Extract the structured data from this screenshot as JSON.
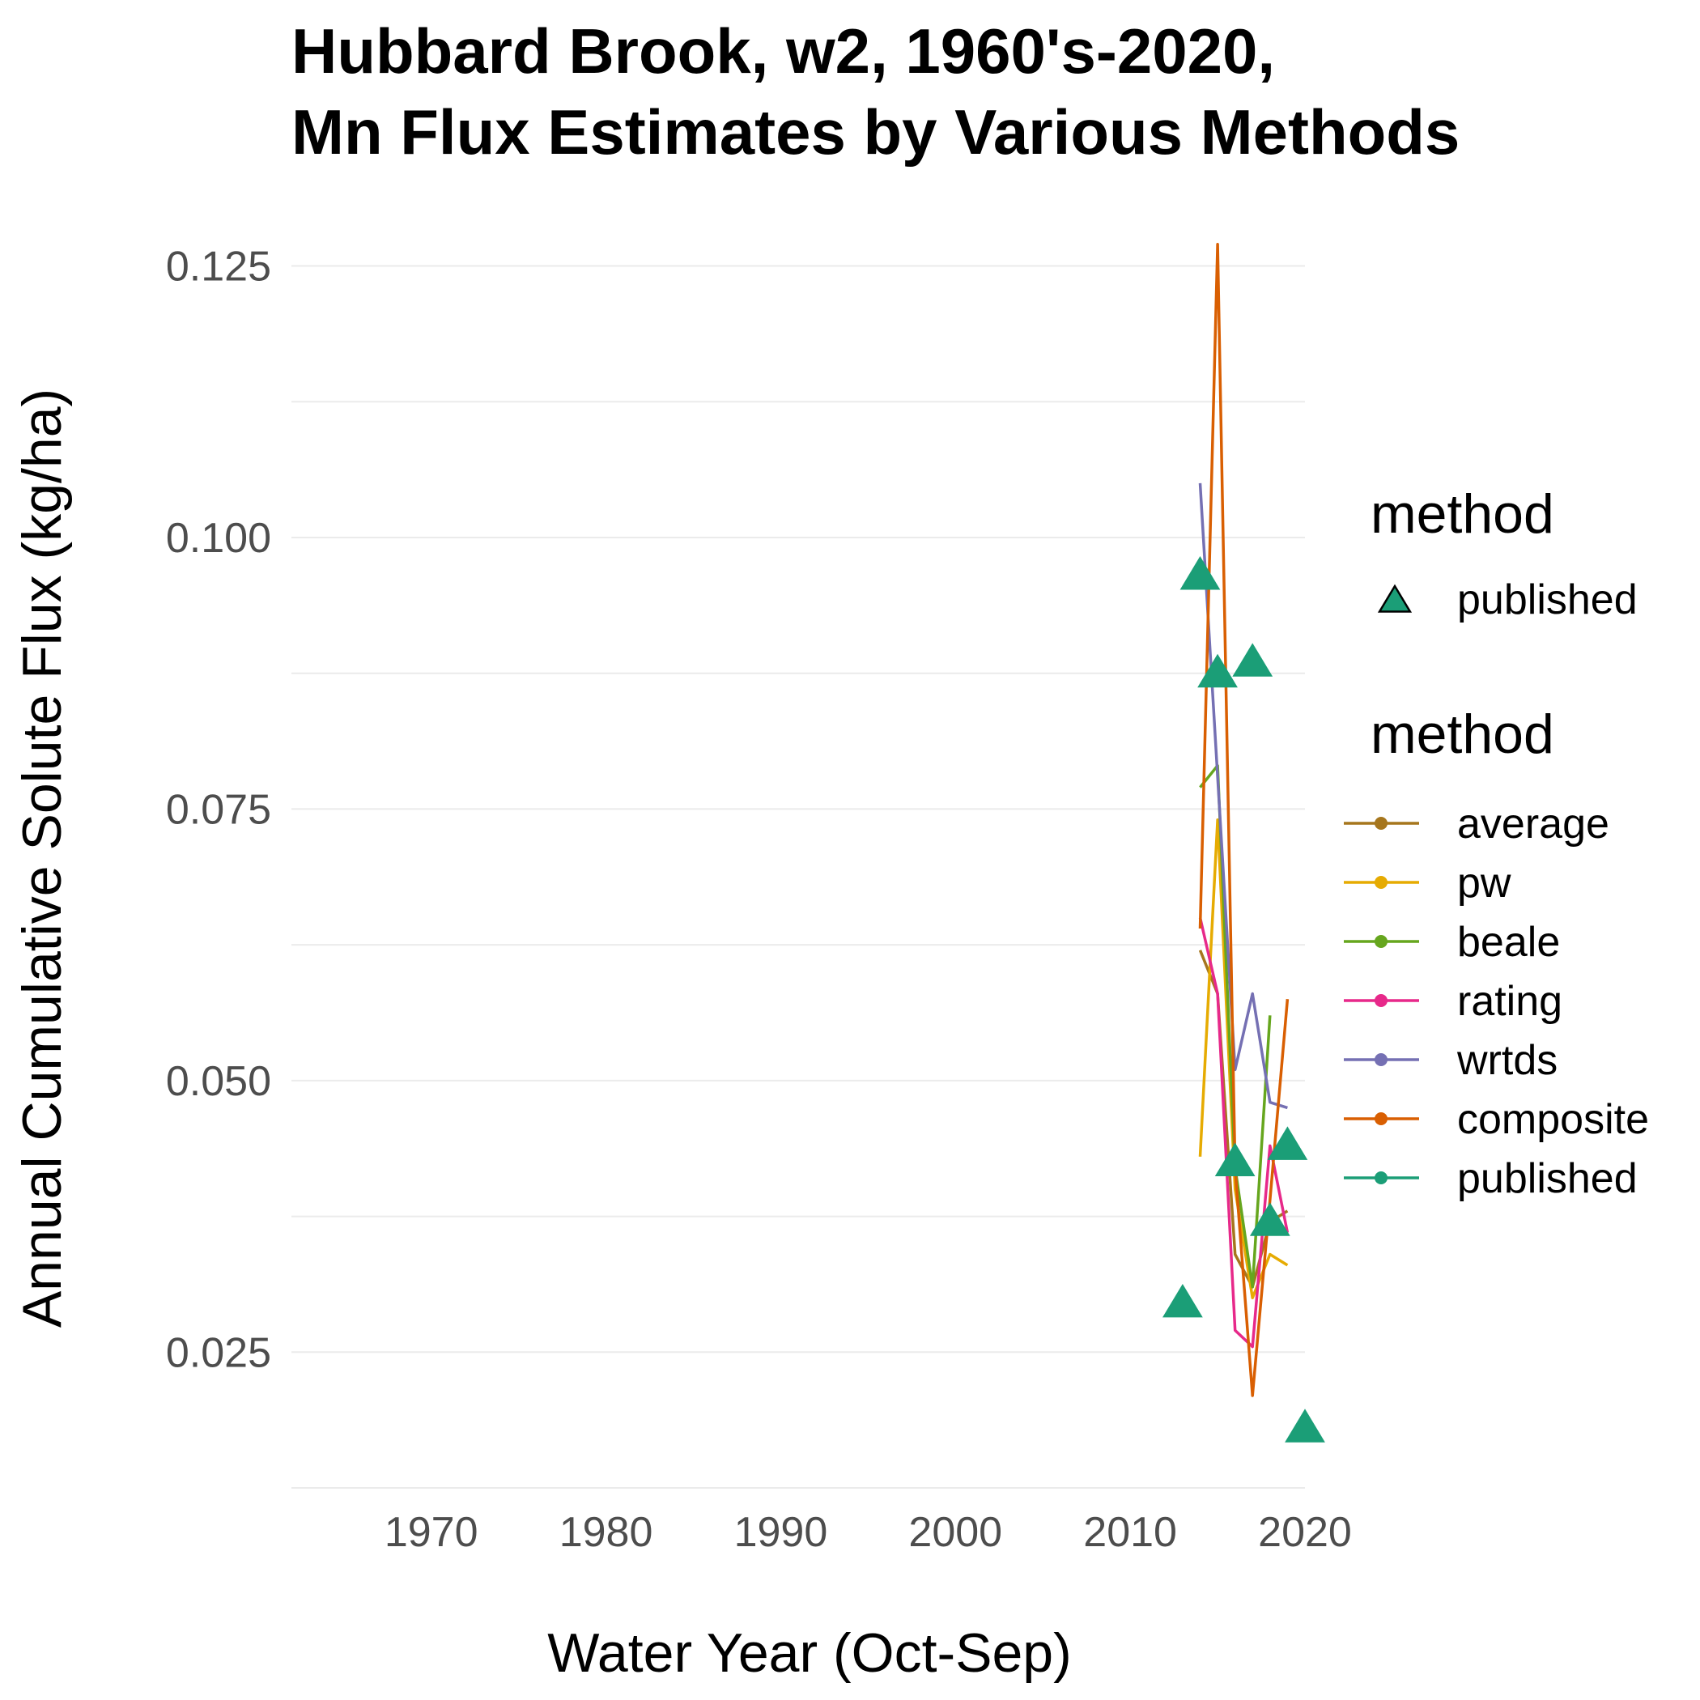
{
  "chart_data": {
    "type": "line",
    "title": [
      "Hubbard Brook, w2, 1960's-2020,",
      "Mn Flux Estimates by Various Methods"
    ],
    "xlabel": "Water Year (Oct-Sep)",
    "ylabel": "Annual Cumulative Solute Flux (kg/ha)",
    "xlim": [
      1962,
      2020
    ],
    "ylim": [
      0.0125,
      0.1275
    ],
    "x_ticks": [
      1970,
      1980,
      1990,
      2000,
      2010,
      2020
    ],
    "y_ticks": [
      0.025,
      0.05,
      0.075,
      0.1,
      0.125
    ],
    "y_tick_labels": [
      "0.025",
      "0.050",
      "0.075",
      "0.100",
      "0.125"
    ],
    "grid": "horizontal-major-and-minor",
    "legend_placement": "right",
    "series": [
      {
        "name": "average",
        "color": "#a6761d",
        "x": [
          2014,
          2015,
          2016,
          2017,
          2018,
          2019
        ],
        "y": [
          0.062,
          0.058,
          0.034,
          0.031,
          0.037,
          0.038
        ]
      },
      {
        "name": "pw",
        "color": "#e6ab02",
        "x": [
          2014,
          2015,
          2016,
          2017,
          2018,
          2019
        ],
        "y": [
          0.043,
          0.074,
          0.04,
          0.03,
          0.034,
          0.033
        ]
      },
      {
        "name": "beale",
        "color": "#66a61e",
        "x": [
          2014,
          2015,
          2016,
          2017,
          2018
        ],
        "y": [
          0.077,
          0.079,
          0.042,
          0.031,
          0.056
        ]
      },
      {
        "name": "rating",
        "color": "#e7298a",
        "x": [
          2014,
          2015,
          2016,
          2017,
          2018,
          2019
        ],
        "y": [
          0.065,
          0.058,
          0.027,
          0.0255,
          0.044,
          0.036
        ]
      },
      {
        "name": "wrtds",
        "color": "#7570b3",
        "x": [
          2014,
          2015,
          2016,
          2017,
          2018,
          2019
        ],
        "y": [
          0.105,
          0.078,
          0.051,
          0.058,
          0.048,
          0.0475
        ]
      },
      {
        "name": "composite",
        "color": "#d95f02",
        "x": [
          2014,
          2015,
          2016,
          2017,
          2018,
          2019
        ],
        "y": [
          0.064,
          0.127,
          0.042,
          0.021,
          0.039,
          0.0575
        ]
      },
      {
        "name": "published",
        "color": "#1b9e77",
        "x": [],
        "y": []
      }
    ],
    "points": {
      "name": "published",
      "color": "#1b9e77",
      "shape": "triangle",
      "x": [
        2013,
        2014,
        2015,
        2016,
        2017,
        2018,
        2019,
        2020
      ],
      "y": [
        0.0295,
        0.0965,
        0.0875,
        0.0425,
        0.0885,
        0.037,
        0.044,
        0.018
      ]
    },
    "legends": [
      {
        "title": "method",
        "entries": [
          "published"
        ],
        "glyph": "triangle"
      },
      {
        "title": "method",
        "entries": [
          "average",
          "pw",
          "beale",
          "rating",
          "wrtds",
          "composite",
          "published"
        ],
        "glyph": "line-point"
      }
    ]
  }
}
